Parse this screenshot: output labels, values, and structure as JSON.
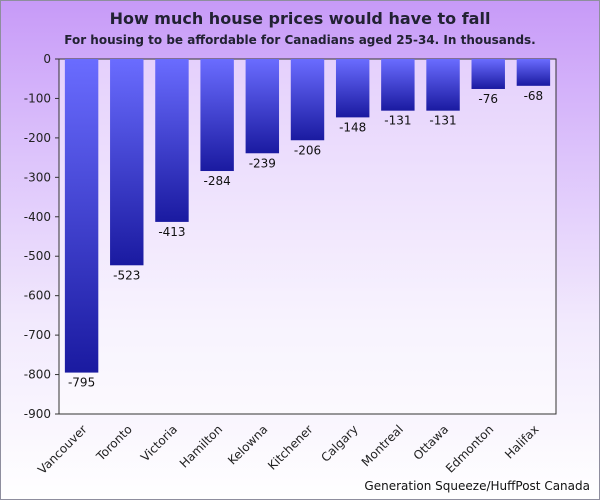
{
  "chart_data": {
    "type": "bar",
    "title": "How much house prices would have to fall",
    "subtitle": "For housing to be affordable for Canadians aged 25-34. In thousands.",
    "categories": [
      "Vancouver",
      "Toronto",
      "Victoria",
      "Hamilton",
      "Kelowna",
      "Kitchener",
      "Calgary",
      "Montreal",
      "Ottawa",
      "Edmonton",
      "Halifax"
    ],
    "values": [
      -795,
      -523,
      -413,
      -284,
      -239,
      -206,
      -148,
      -131,
      -131,
      -76,
      -68
    ],
    "ylim": [
      -900,
      0
    ],
    "yticks": [
      "0",
      "-100",
      "-200",
      "-300",
      "-400",
      "-500",
      "-600",
      "-700",
      "-800",
      "-900"
    ],
    "grid": false,
    "legend": "none",
    "bar_color_top": "#6a6cff",
    "bar_color_bottom": "#1a1aa0"
  },
  "source": "Generation Squeeze/HuffPost Canada"
}
